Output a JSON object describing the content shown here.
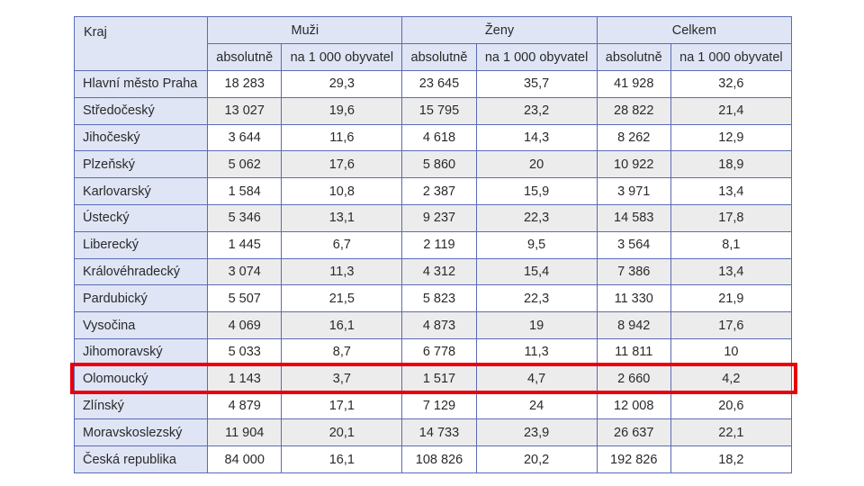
{
  "headers": {
    "kraj": "Kraj",
    "groups": [
      "Muži",
      "Ženy",
      "Celkem"
    ],
    "sub": [
      "absolutně",
      "na 1 000 obyvatel"
    ]
  },
  "highlight_color": "#e8000b",
  "header_bg": "#dfe5f5",
  "border_color": "#5b6bb5",
  "rows": [
    {
      "kraj": "Hlavní město Praha",
      "m_abs": "18 283",
      "m_rel": "29,3",
      "z_abs": "23 645",
      "z_rel": "35,7",
      "c_abs": "41 928",
      "c_rel": "32,6"
    },
    {
      "kraj": "Středočeský",
      "m_abs": "13 027",
      "m_rel": "19,6",
      "z_abs": "15 795",
      "z_rel": "23,2",
      "c_abs": "28 822",
      "c_rel": "21,4"
    },
    {
      "kraj": "Jihočeský",
      "m_abs": "3 644",
      "m_rel": "11,6",
      "z_abs": "4 618",
      "z_rel": "14,3",
      "c_abs": "8 262",
      "c_rel": "12,9"
    },
    {
      "kraj": "Plzeňský",
      "m_abs": "5 062",
      "m_rel": "17,6",
      "z_abs": "5 860",
      "z_rel": "20",
      "c_abs": "10 922",
      "c_rel": "18,9"
    },
    {
      "kraj": "Karlovarský",
      "m_abs": "1 584",
      "m_rel": "10,8",
      "z_abs": "2 387",
      "z_rel": "15,9",
      "c_abs": "3 971",
      "c_rel": "13,4"
    },
    {
      "kraj": "Ústecký",
      "m_abs": "5 346",
      "m_rel": "13,1",
      "z_abs": "9 237",
      "z_rel": "22,3",
      "c_abs": "14 583",
      "c_rel": "17,8"
    },
    {
      "kraj": "Liberecký",
      "m_abs": "1 445",
      "m_rel": "6,7",
      "z_abs": "2 119",
      "z_rel": "9,5",
      "c_abs": "3 564",
      "c_rel": "8,1"
    },
    {
      "kraj": "Královéhradecký",
      "m_abs": "3 074",
      "m_rel": "11,3",
      "z_abs": "4 312",
      "z_rel": "15,4",
      "c_abs": "7 386",
      "c_rel": "13,4"
    },
    {
      "kraj": "Pardubický",
      "m_abs": "5 507",
      "m_rel": "21,5",
      "z_abs": "5 823",
      "z_rel": "22,3",
      "c_abs": "11 330",
      "c_rel": "21,9"
    },
    {
      "kraj": "Vysočina",
      "m_abs": "4 069",
      "m_rel": "16,1",
      "z_abs": "4 873",
      "z_rel": "19",
      "c_abs": "8 942",
      "c_rel": "17,6"
    },
    {
      "kraj": "Jihomoravský",
      "m_abs": "5 033",
      "m_rel": "8,7",
      "z_abs": "6 778",
      "z_rel": "11,3",
      "c_abs": "11 811",
      "c_rel": "10"
    },
    {
      "kraj": "Olomoucký",
      "m_abs": "1 143",
      "m_rel": "3,7",
      "z_abs": "1 517",
      "z_rel": "4,7",
      "c_abs": "2 660",
      "c_rel": "4,2"
    },
    {
      "kraj": "Zlínský",
      "m_abs": "4 879",
      "m_rel": "17,1",
      "z_abs": "7 129",
      "z_rel": "24",
      "c_abs": "12 008",
      "c_rel": "20,6"
    },
    {
      "kraj": "Moravskoslezský",
      "m_abs": "11 904",
      "m_rel": "20,1",
      "z_abs": "14 733",
      "z_rel": "23,9",
      "c_abs": "26 637",
      "c_rel": "22,1"
    },
    {
      "kraj": "Česká republika",
      "m_abs": "84 000",
      "m_rel": "16,1",
      "z_abs": "108 826",
      "z_rel": "20,2",
      "c_abs": "192 826",
      "c_rel": "18,2"
    }
  ]
}
